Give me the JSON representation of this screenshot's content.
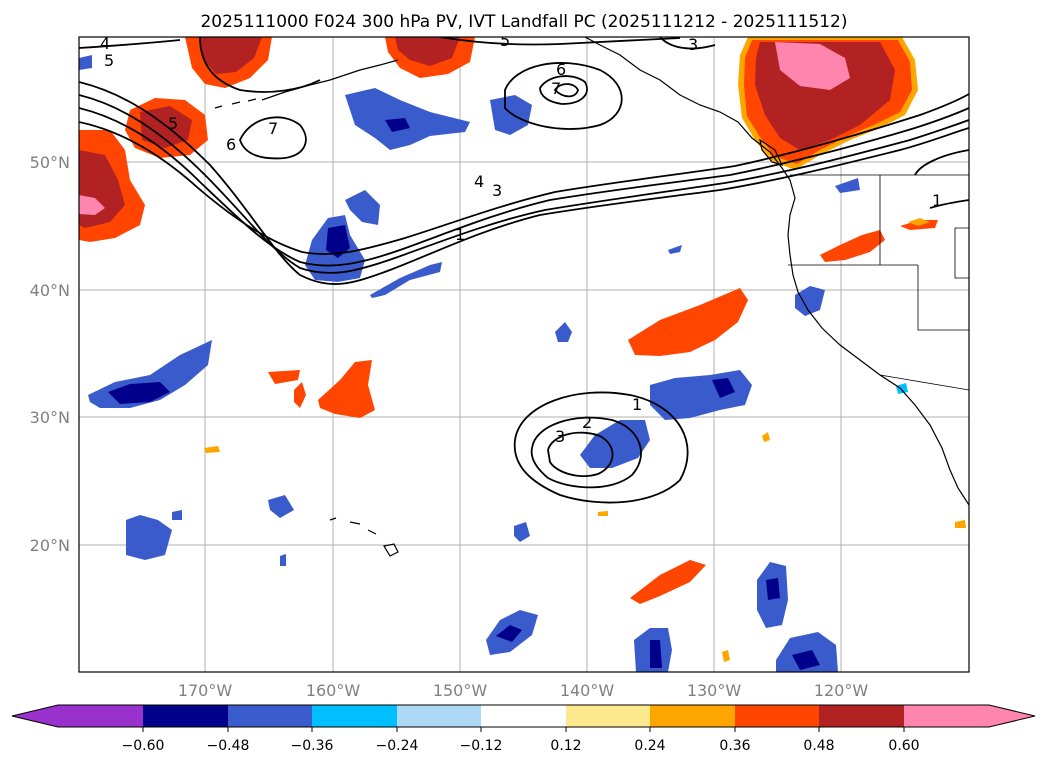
{
  "title": "2025111000 F024 300 hPa PV, IVT Landfall PC (2025111212 - 2025111512)",
  "lat_labels": [
    "50°N",
    "40°N",
    "30°N",
    "20°N"
  ],
  "lon_labels": [
    "170°W",
    "160°W",
    "150°W",
    "140°W",
    "130°W",
    "120°W"
  ],
  "colorbar": {
    "ticks": [
      "−0.60",
      "−0.48",
      "−0.36",
      "−0.24",
      "−0.12",
      "0.12",
      "0.24",
      "0.36",
      "0.48",
      "0.60"
    ],
    "colors": [
      "#9932cc",
      "#00008b",
      "#3a5bcc",
      "#00bfff",
      "#add8f6",
      "#ffffff",
      "#fde98d",
      "#ffa500",
      "#ff4500",
      "#b22222",
      "#ff85ae"
    ]
  },
  "contour_labels": [
    "4",
    "5",
    "5",
    "6",
    "7",
    "4",
    "3",
    "1",
    "6",
    "7",
    "3",
    "1",
    "1",
    "2",
    "3",
    "5"
  ],
  "colors": {
    "strong_negative": "#00008b",
    "negative": "#3a5bcc",
    "weak_negative": "#00bfff",
    "positive": "#ff4500",
    "strong_positive": "#b22222",
    "max_positive": "#ff85ae",
    "edge_positive": "#ffa500",
    "coast": "#000000",
    "grid": "#b0b0b0"
  }
}
